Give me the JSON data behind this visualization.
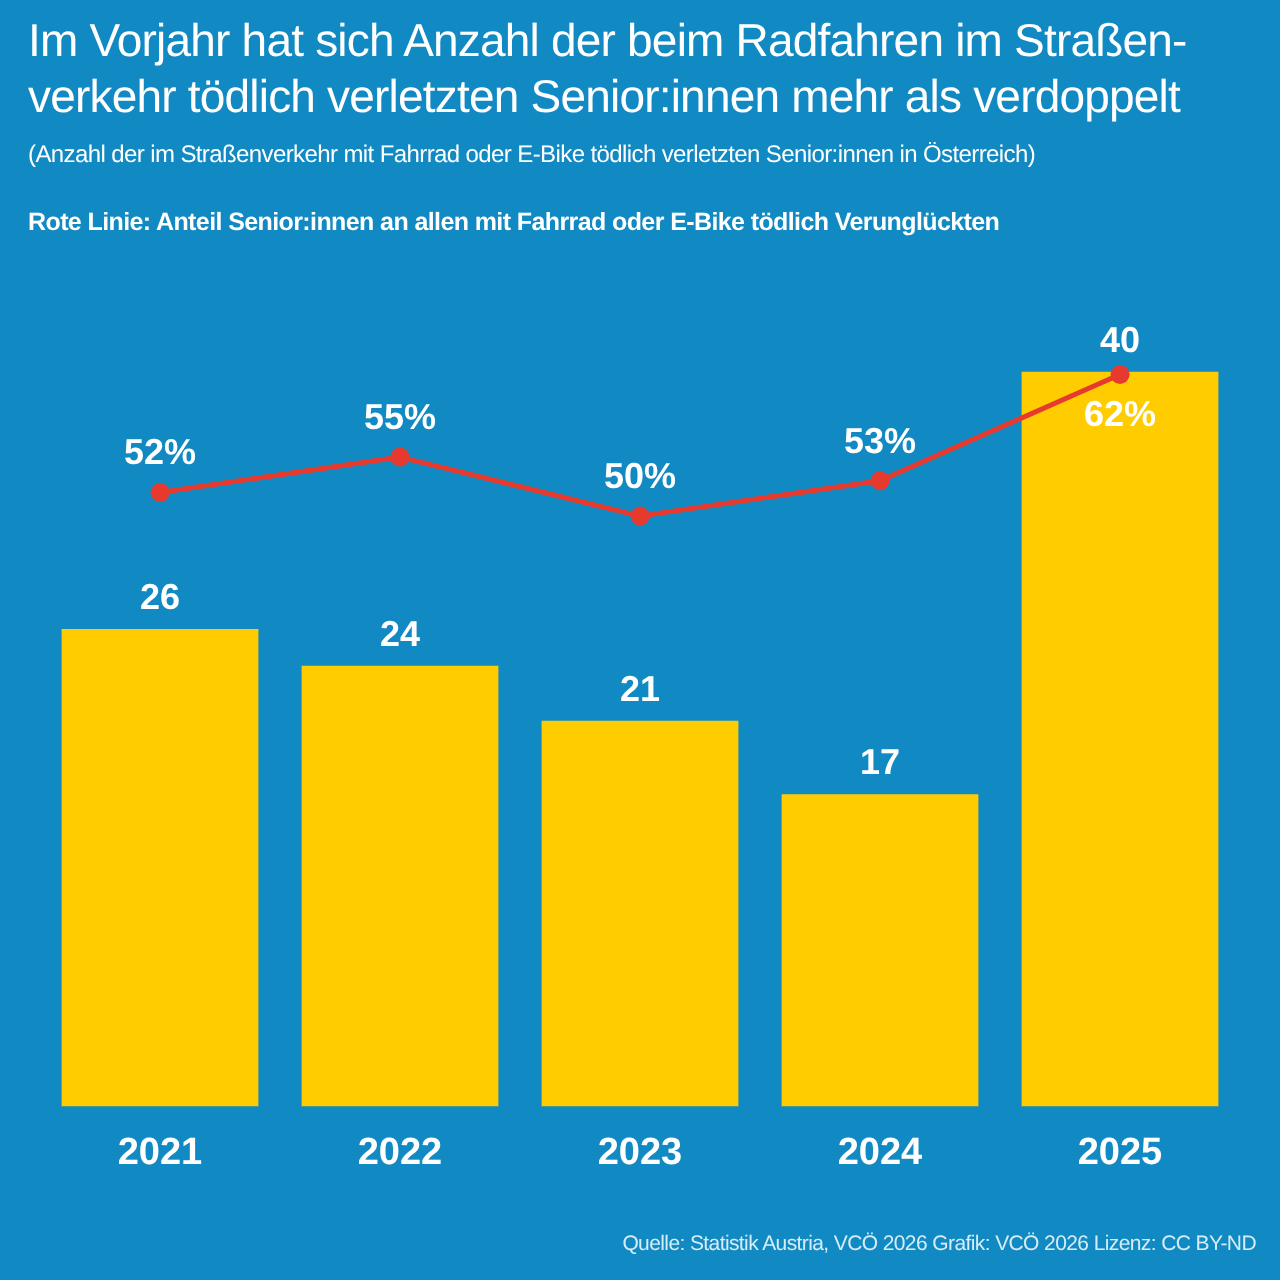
{
  "chart_data": {
    "type": "bar",
    "title": "Im Vorjahr hat sich Anzahl der beim Radfahren im Straßen-\nverkehr tödlich verletzten Senior:innen mehr als verdoppelt",
    "subtitle": "(Anzahl der im Straßenverkehr mit Fahrrad oder E-Bike tödlich verletzten Senior:innen in Österreich)",
    "annotations": [
      "Rote Linie: Anteil Senior:innen an allen mit Fahrrad oder E-Bike tödlich Verunglückten",
      "Quelle: Statistik Austria, VCÖ 2026 Grafik: VCÖ 2026 Lizenz: CC BY-ND"
    ],
    "categories": [
      "2021",
      "2022",
      "2023",
      "2024",
      "2025"
    ],
    "series": [
      {
        "color": "#ffcc00",
        "values": [
          26,
          24,
          21,
          17,
          40
        ],
        "value_labels": [
          "26",
          "24",
          "21",
          "17",
          "40"
        ]
      },
      {
        "type": "line",
        "axis": "y2",
        "color": "#e63a2e",
        "values": [
          52,
          55,
          50,
          53,
          62
        ],
        "value_labels": [
          "52%",
          "55%",
          "50%",
          "53%",
          "62%"
        ]
      }
    ],
    "tick_labels": "x",
    "legend": false,
    "grid": false,
    "marker": "circle",
    "line_style": "solid"
  }
}
